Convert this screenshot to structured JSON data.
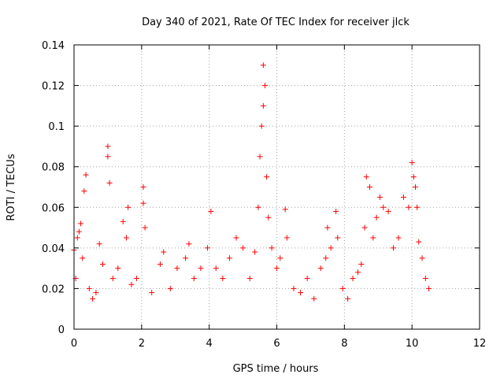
{
  "chart_data": {
    "type": "scatter",
    "title": "Day 340 of 2021, Rate Of TEC Index for receiver jlck",
    "xlabel": "GPS time / hours",
    "ylabel": "ROTI / TECUs",
    "xlim": [
      0,
      12
    ],
    "ylim": [
      0,
      0.14
    ],
    "xticks": [
      0,
      2,
      4,
      6,
      8,
      10,
      12
    ],
    "xtick_labels": [
      "0",
      "2",
      "4",
      "6",
      "8",
      "10",
      "12"
    ],
    "yticks": [
      0,
      0.02,
      0.04,
      0.06,
      0.08,
      0.1,
      0.12,
      0.14
    ],
    "ytick_labels": [
      "0",
      "0.02",
      "0.04",
      "0.06",
      "0.08",
      "0.1",
      "0.12",
      "0.14"
    ],
    "grid": true,
    "marker": "+",
    "color": "#ff0000",
    "series": [
      {
        "name": "ROTI",
        "x": [
          0.0,
          0.05,
          0.1,
          0.15,
          0.2,
          0.25,
          0.3,
          0.35,
          0.45,
          0.55,
          0.65,
          0.75,
          0.85,
          1.0,
          1.0,
          1.05,
          1.15,
          1.3,
          1.45,
          1.55,
          1.6,
          1.7,
          1.85,
          2.05,
          2.05,
          2.1,
          2.3,
          2.55,
          2.65,
          2.85,
          3.05,
          3.3,
          3.4,
          3.55,
          3.75,
          3.95,
          4.05,
          4.2,
          4.4,
          4.6,
          4.8,
          5.0,
          5.2,
          5.35,
          5.45,
          5.5,
          5.55,
          5.6,
          5.6,
          5.65,
          5.7,
          5.75,
          5.85,
          6.0,
          6.1,
          6.25,
          6.3,
          6.5,
          6.7,
          6.9,
          7.1,
          7.3,
          7.45,
          7.5,
          7.6,
          7.75,
          7.8,
          7.95,
          8.1,
          8.25,
          8.4,
          8.5,
          8.6,
          8.65,
          8.75,
          8.85,
          8.95,
          9.05,
          9.15,
          9.3,
          9.45,
          9.6,
          9.75,
          9.9,
          10.0,
          10.05,
          10.1,
          10.15,
          10.2,
          10.3,
          10.4,
          10.5
        ],
        "y": [
          0.039,
          0.025,
          0.045,
          0.048,
          0.052,
          0.035,
          0.068,
          0.076,
          0.02,
          0.015,
          0.018,
          0.042,
          0.032,
          0.09,
          0.085,
          0.072,
          0.025,
          0.03,
          0.053,
          0.045,
          0.06,
          0.022,
          0.025,
          0.07,
          0.062,
          0.05,
          0.018,
          0.032,
          0.038,
          0.02,
          0.03,
          0.035,
          0.042,
          0.025,
          0.03,
          0.04,
          0.058,
          0.03,
          0.025,
          0.035,
          0.045,
          0.04,
          0.025,
          0.038,
          0.06,
          0.085,
          0.1,
          0.11,
          0.13,
          0.12,
          0.075,
          0.055,
          0.04,
          0.03,
          0.035,
          0.059,
          0.045,
          0.02,
          0.018,
          0.025,
          0.015,
          0.03,
          0.035,
          0.05,
          0.04,
          0.058,
          0.045,
          0.02,
          0.015,
          0.025,
          0.028,
          0.032,
          0.05,
          0.075,
          0.07,
          0.045,
          0.055,
          0.065,
          0.06,
          0.058,
          0.04,
          0.045,
          0.065,
          0.06,
          0.082,
          0.075,
          0.07,
          0.06,
          0.043,
          0.035,
          0.025,
          0.02
        ]
      }
    ]
  }
}
